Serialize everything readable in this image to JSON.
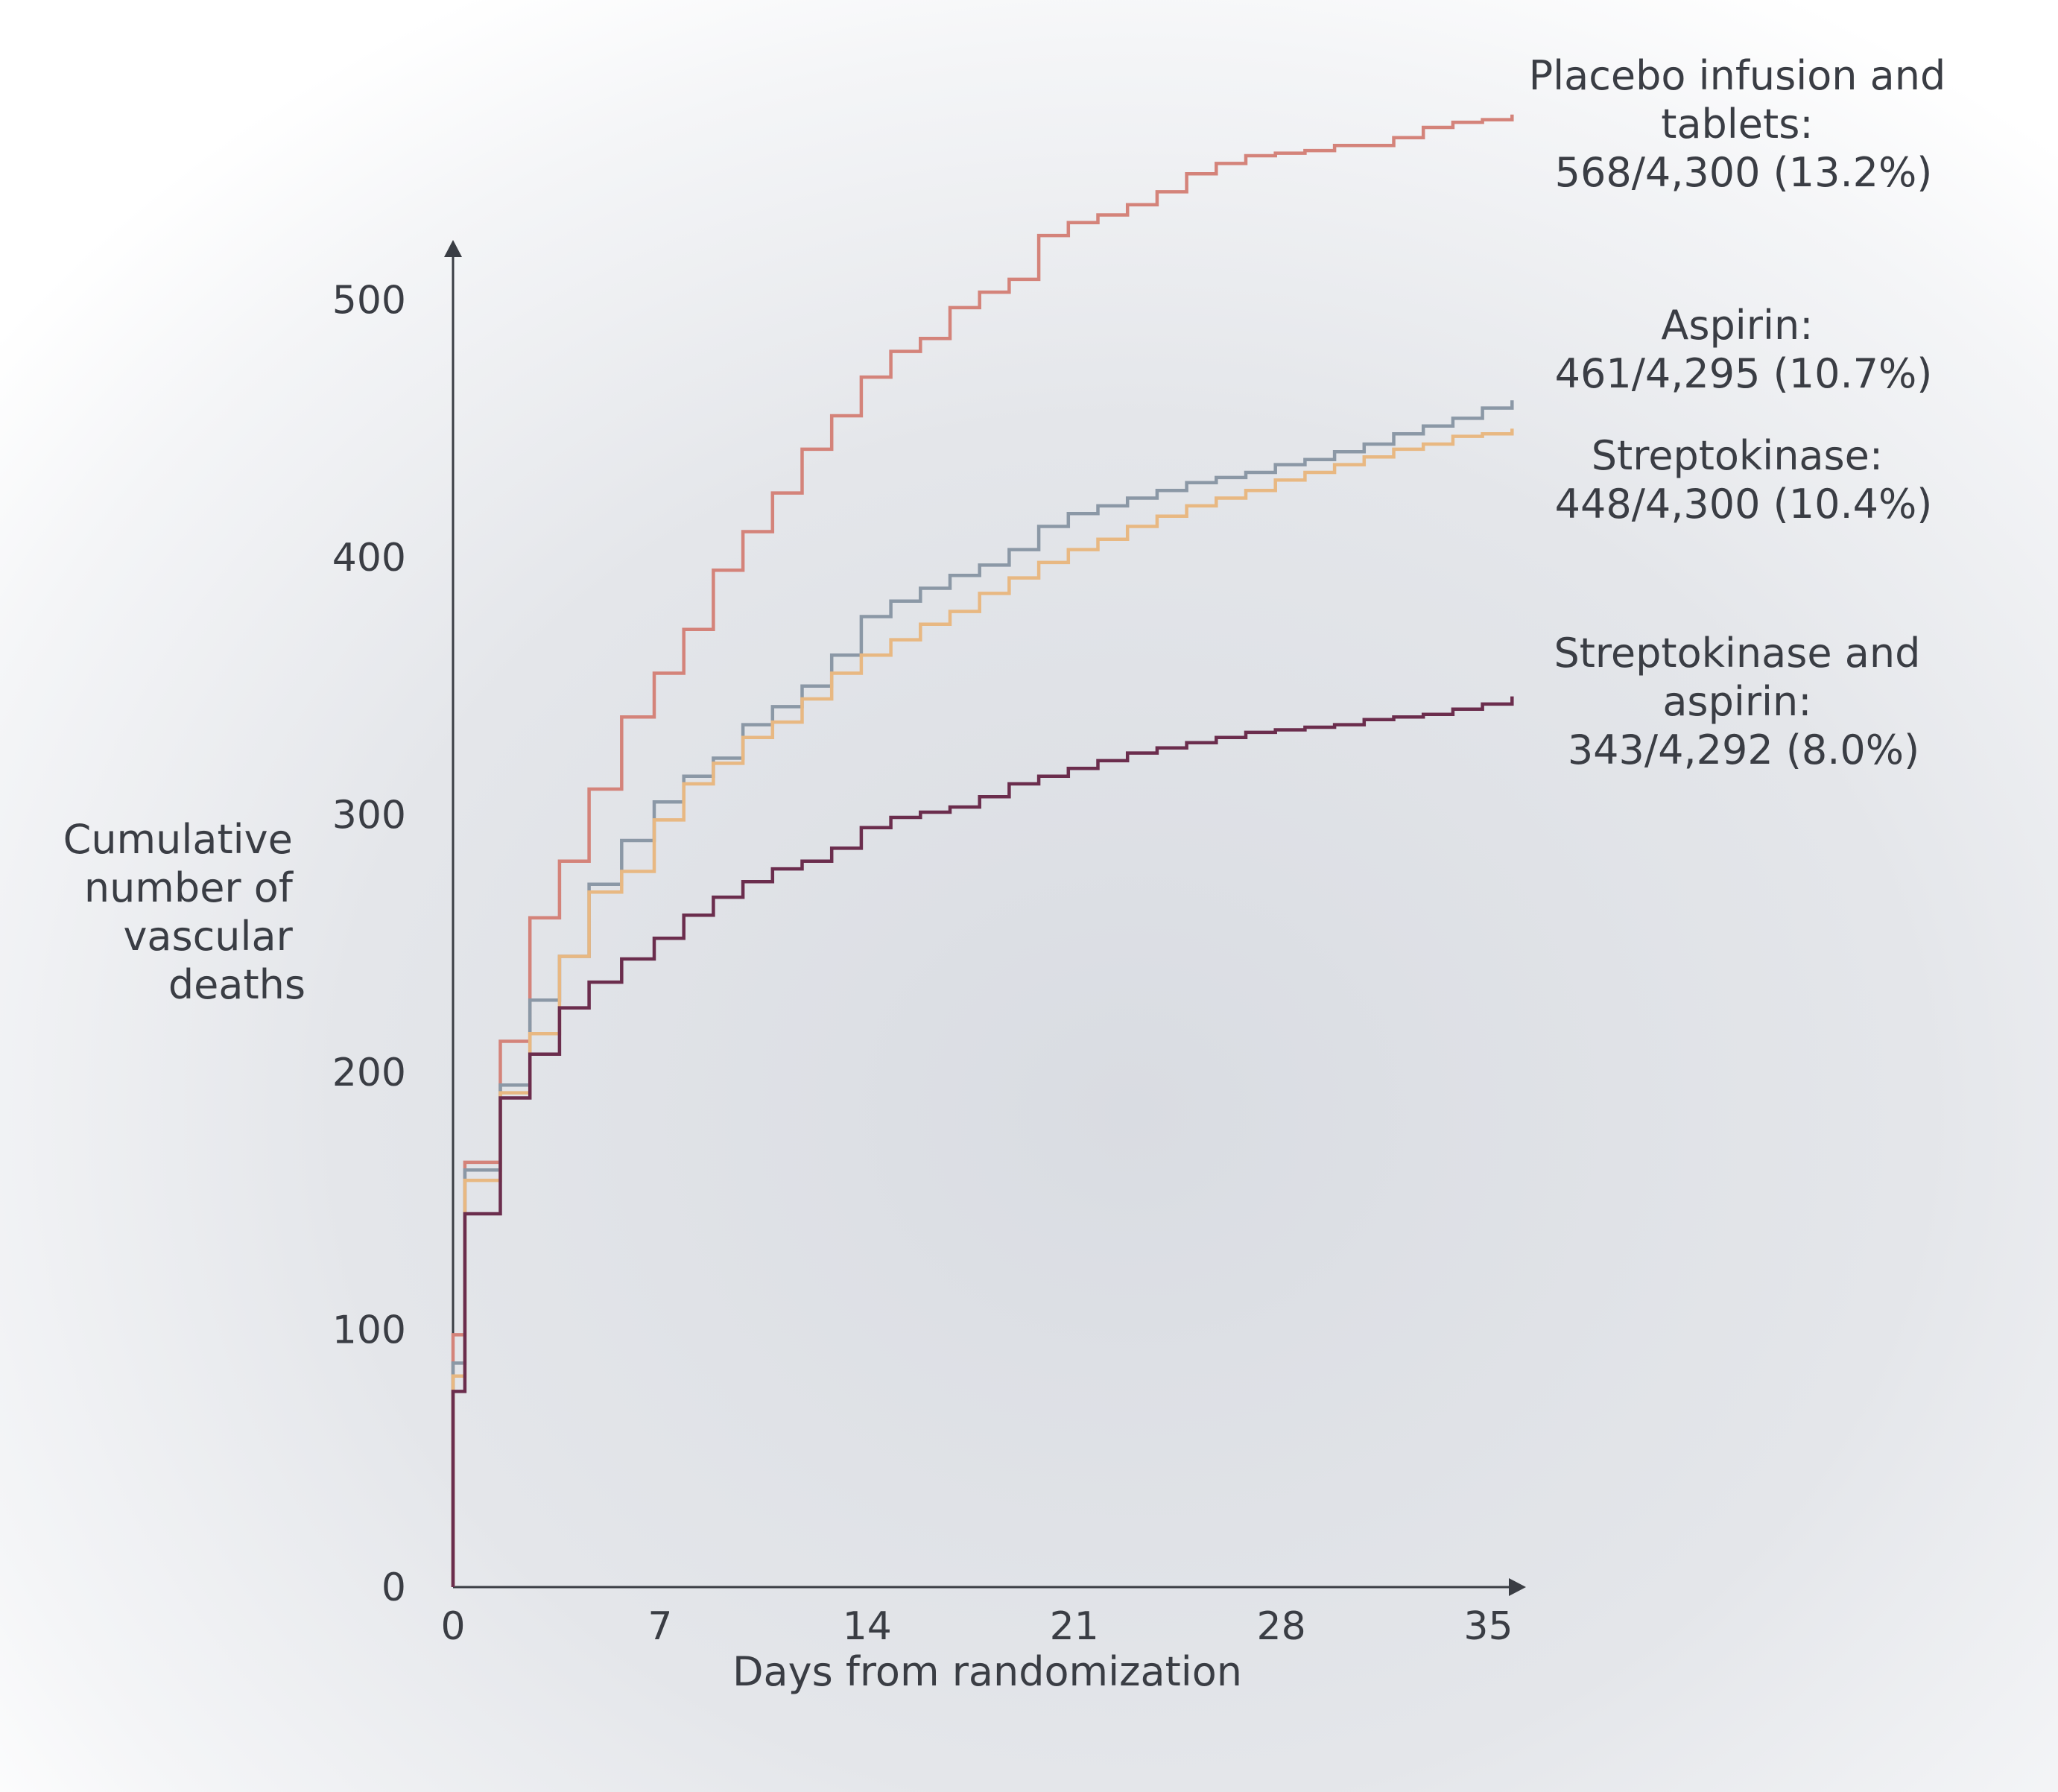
{
  "chart_data": {
    "type": "line",
    "title": "",
    "xlabel": "Days from randomization",
    "ylabel": [
      "Cumulative",
      "number of",
      "vascular",
      "deaths"
    ],
    "xlim": [
      0,
      36
    ],
    "ylim": [
      0,
      520
    ],
    "x_ticks": [
      "0",
      "7",
      "14",
      "21",
      "28",
      "35"
    ],
    "y_ticks": [
      "0",
      "100",
      "200",
      "300",
      "400",
      "500"
    ],
    "grid": false,
    "step": true,
    "series": [
      {
        "id": "placebo",
        "name": "Placebo infusion and tablets",
        "label_lines": [
          "Placebo infusion and",
          "tablets:",
          "568/4,300 (13.2%)"
        ],
        "color": "#d4837a",
        "x": [
          0,
          0.4,
          1.6,
          2.6,
          3.6,
          4.6,
          5.7,
          6.8,
          7.8,
          8.8,
          9.8,
          10.8,
          11.8,
          12.8,
          13.8,
          14.8,
          15.8,
          16.8,
          17.8,
          18.8,
          19.8,
          20.8,
          21.8,
          22.8,
          23.8,
          24.8,
          25.8,
          26.8,
          27.8,
          28.8,
          29.8,
          30.8,
          31.8,
          32.8,
          33.8,
          34.8,
          35.8
        ],
        "y": [
          98,
          165,
          212,
          260,
          282,
          310,
          338,
          355,
          372,
          395,
          410,
          425,
          442,
          455,
          470,
          480,
          485,
          497,
          503,
          508,
          525,
          530,
          533,
          537,
          542,
          549,
          553,
          556,
          557,
          558,
          560,
          560,
          563,
          567,
          569,
          570,
          572
        ]
      },
      {
        "id": "aspirin",
        "name": "Aspirin",
        "label_lines": [
          "Aspirin:",
          "461/4,295 (10.7%)"
        ],
        "color": "#8b98a6",
        "x": [
          0,
          0.4,
          1.6,
          2.6,
          3.6,
          4.6,
          5.7,
          6.8,
          7.8,
          8.8,
          9.8,
          10.8,
          11.8,
          12.8,
          13.8,
          14.8,
          15.8,
          16.8,
          17.8,
          18.8,
          19.8,
          20.8,
          21.8,
          22.8,
          23.8,
          24.8,
          25.8,
          26.8,
          27.8,
          28.8,
          29.8,
          30.8,
          31.8,
          32.8,
          33.8,
          34.8,
          35.8
        ],
        "y": [
          87,
          162,
          195,
          228,
          245,
          273,
          290,
          305,
          315,
          322,
          335,
          342,
          350,
          362,
          377,
          383,
          388,
          393,
          397,
          403,
          412,
          417,
          420,
          423,
          426,
          429,
          431,
          433,
          436,
          438,
          441,
          444,
          448,
          451,
          454,
          458,
          461
        ]
      },
      {
        "id": "streptokinase",
        "name": "Streptokinase",
        "label_lines": [
          "Streptokinase:",
          "448/4,300 (10.4%)"
        ],
        "color": "#e8b882",
        "x": [
          0,
          0.4,
          1.6,
          2.6,
          3.6,
          4.6,
          5.7,
          6.8,
          7.8,
          8.8,
          9.8,
          10.8,
          11.8,
          12.8,
          13.8,
          14.8,
          15.8,
          16.8,
          17.8,
          18.8,
          19.8,
          20.8,
          21.8,
          22.8,
          23.8,
          24.8,
          25.8,
          26.8,
          27.8,
          28.8,
          29.8,
          30.8,
          31.8,
          32.8,
          33.8,
          34.8,
          35.8
        ],
        "y": [
          82,
          158,
          192,
          215,
          245,
          270,
          278,
          298,
          312,
          320,
          330,
          336,
          345,
          355,
          362,
          368,
          374,
          379,
          386,
          392,
          398,
          403,
          407,
          412,
          416,
          420,
          423,
          426,
          430,
          433,
          436,
          439,
          442,
          444,
          447,
          448,
          450
        ]
      },
      {
        "id": "streptokinase-aspirin",
        "name": "Streptokinase and aspirin",
        "label_lines": [
          "Streptokinase and",
          "aspirin:",
          "343/4,292 (8.0%)"
        ],
        "color": "#6b2d4d",
        "x": [
          0,
          0.4,
          1.6,
          2.6,
          3.6,
          4.6,
          5.7,
          6.8,
          7.8,
          8.8,
          9.8,
          10.8,
          11.8,
          12.8,
          13.8,
          14.8,
          15.8,
          16.8,
          17.8,
          18.8,
          19.8,
          20.8,
          21.8,
          22.8,
          23.8,
          24.8,
          25.8,
          26.8,
          27.8,
          28.8,
          29.8,
          30.8,
          31.8,
          32.8,
          33.8,
          34.8,
          35.8
        ],
        "y": [
          76,
          145,
          190,
          207,
          225,
          235,
          244,
          252,
          261,
          268,
          274,
          279,
          282,
          287,
          295,
          299,
          301,
          303,
          307,
          312,
          315,
          318,
          321,
          324,
          326,
          328,
          330,
          332,
          333,
          334,
          335,
          337,
          338,
          339,
          341,
          343,
          346
        ]
      }
    ]
  }
}
